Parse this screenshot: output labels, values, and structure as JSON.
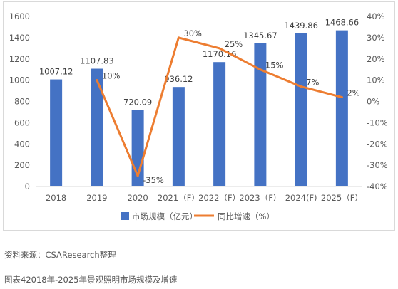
{
  "chart_data": {
    "type": "bar",
    "categories": [
      "2018",
      "2019",
      "2020",
      "2021（F）",
      "2022（F）",
      "2023（F）",
      "2024(F)",
      "2025（F）"
    ],
    "series": [
      {
        "name": "市场规模（亿元）",
        "type": "bar",
        "axis": "left",
        "values": [
          1007.12,
          1107.83,
          720.09,
          936.12,
          1170.16,
          1345.67,
          1439.86,
          1468.66
        ],
        "labels": [
          "1007.12",
          "1107.83",
          "720.09",
          "936.12",
          "1170.16",
          "1345.67",
          "1439.86",
          "1468.66"
        ]
      },
      {
        "name": "同比增速（%）",
        "type": "line",
        "axis": "right",
        "values": [
          null,
          10,
          -35,
          30,
          25,
          15,
          7,
          2
        ],
        "labels": [
          "",
          "10%",
          "-35%",
          "30%",
          "25%",
          "15%",
          "7%",
          "2%"
        ]
      }
    ],
    "y_left": {
      "min": 0,
      "max": 1600,
      "ticks": [
        "0",
        "200",
        "400",
        "600",
        "800",
        "1000",
        "1200",
        "1400",
        "1600"
      ]
    },
    "y_right": {
      "min": -40,
      "max": 40,
      "ticks": [
        "-40%",
        "-30%",
        "-20%",
        "-10%",
        "0%",
        "10%",
        "20%",
        "30%",
        "40%"
      ]
    },
    "legend_position": "bottom",
    "grid": false,
    "colors": {
      "bar": "#4472c4",
      "line": "#ed7d31",
      "axis_text": "#595959"
    }
  },
  "source_text": "资料来源：CSAResearch整理",
  "figure_title": "图表42018年-2025年景观照明市场规模及增速"
}
